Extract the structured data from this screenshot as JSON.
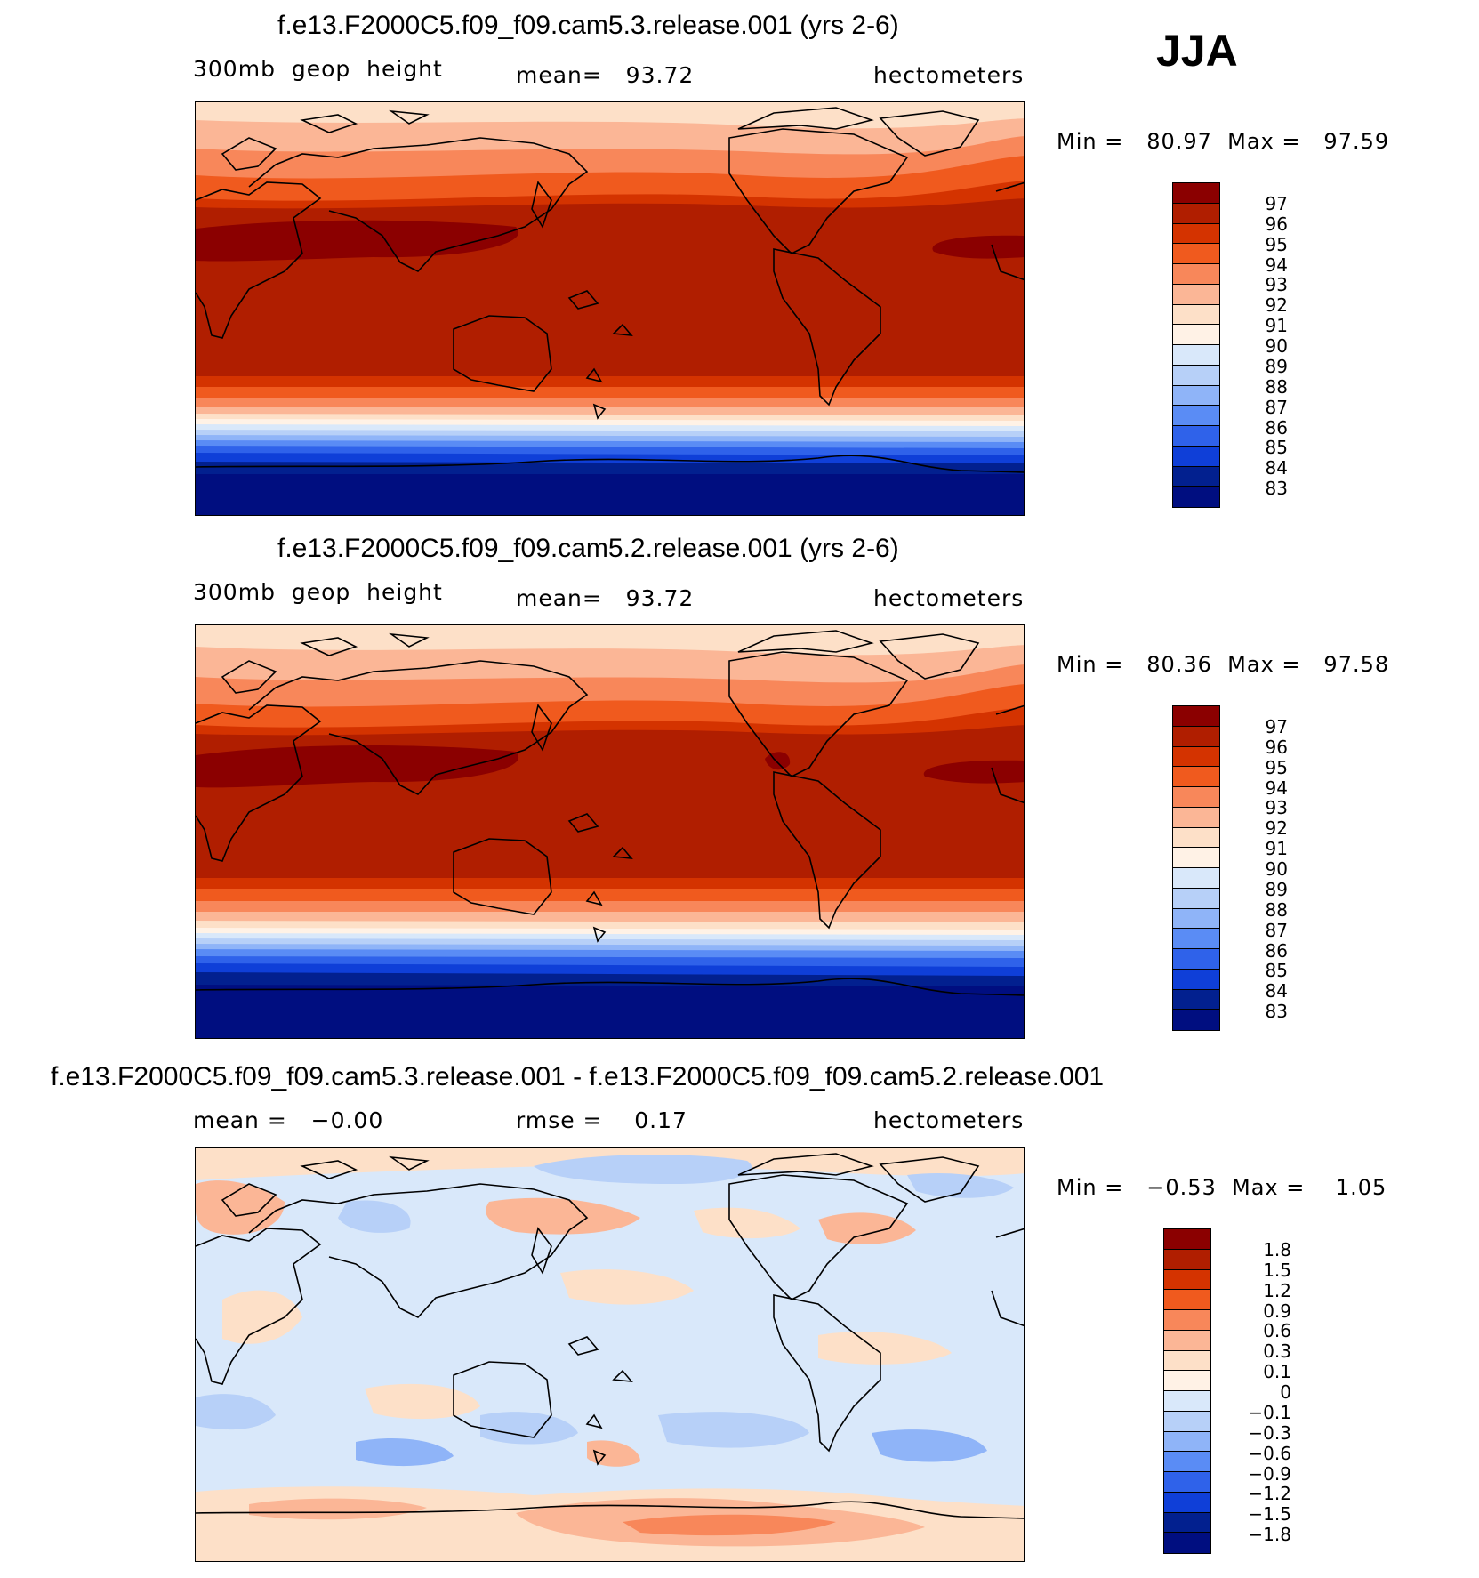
{
  "season": "JJA",
  "panels": [
    {
      "title": "f.e13.F2000C5.f09_f09.cam5.3.release.001 (yrs 2-6)",
      "left_label": "300mb  geop  height",
      "center_label": "mean=   93.72",
      "right_label": "hectometers",
      "minmax": "Min =   80.97  Max =   97.59",
      "colorbar_labels": [
        "97",
        "96",
        "95",
        "94",
        "93",
        "92",
        "91",
        "90",
        "89",
        "88",
        "87",
        "86",
        "85",
        "84",
        "83"
      ]
    },
    {
      "title": "f.e13.F2000C5.f09_f09.cam5.2.release.001 (yrs 2-6)",
      "left_label": "300mb  geop  height",
      "center_label": "mean=   93.72",
      "right_label": "hectometers",
      "minmax": "Min =   80.36  Max =   97.58",
      "colorbar_labels": [
        "97",
        "96",
        "95",
        "94",
        "93",
        "92",
        "91",
        "90",
        "89",
        "88",
        "87",
        "86",
        "85",
        "84",
        "83"
      ]
    },
    {
      "title": "f.e13.F2000C5.f09_f09.cam5.3.release.001 - f.e13.F2000C5.f09_f09.cam5.2.release.001",
      "left_label": "mean =   −0.00",
      "center_label": "rmse =    0.17",
      "right_label": "hectometers",
      "minmax": "Min =   −0.53  Max =    1.05",
      "colorbar_labels": [
        "1.8",
        "1.5",
        "1.2",
        "0.9",
        "0.6",
        "0.3",
        "0.1",
        "0",
        "−0.1",
        "−0.3",
        "−0.6",
        "−0.9",
        "−1.2",
        "−1.5",
        "−1.8"
      ]
    }
  ],
  "colors": {
    "palette": [
      "#8b0000",
      "#b01e00",
      "#d43300",
      "#f05a1e",
      "#f8875a",
      "#fbb696",
      "#fde0c8",
      "#fff2e6",
      "#d9e8fa",
      "#b7d0f8",
      "#8fb4f8",
      "#5a8cf5",
      "#2f62ea",
      "#0f3fd8",
      "#02208f",
      "#000e80"
    ],
    "land_outline": "#000000"
  }
}
